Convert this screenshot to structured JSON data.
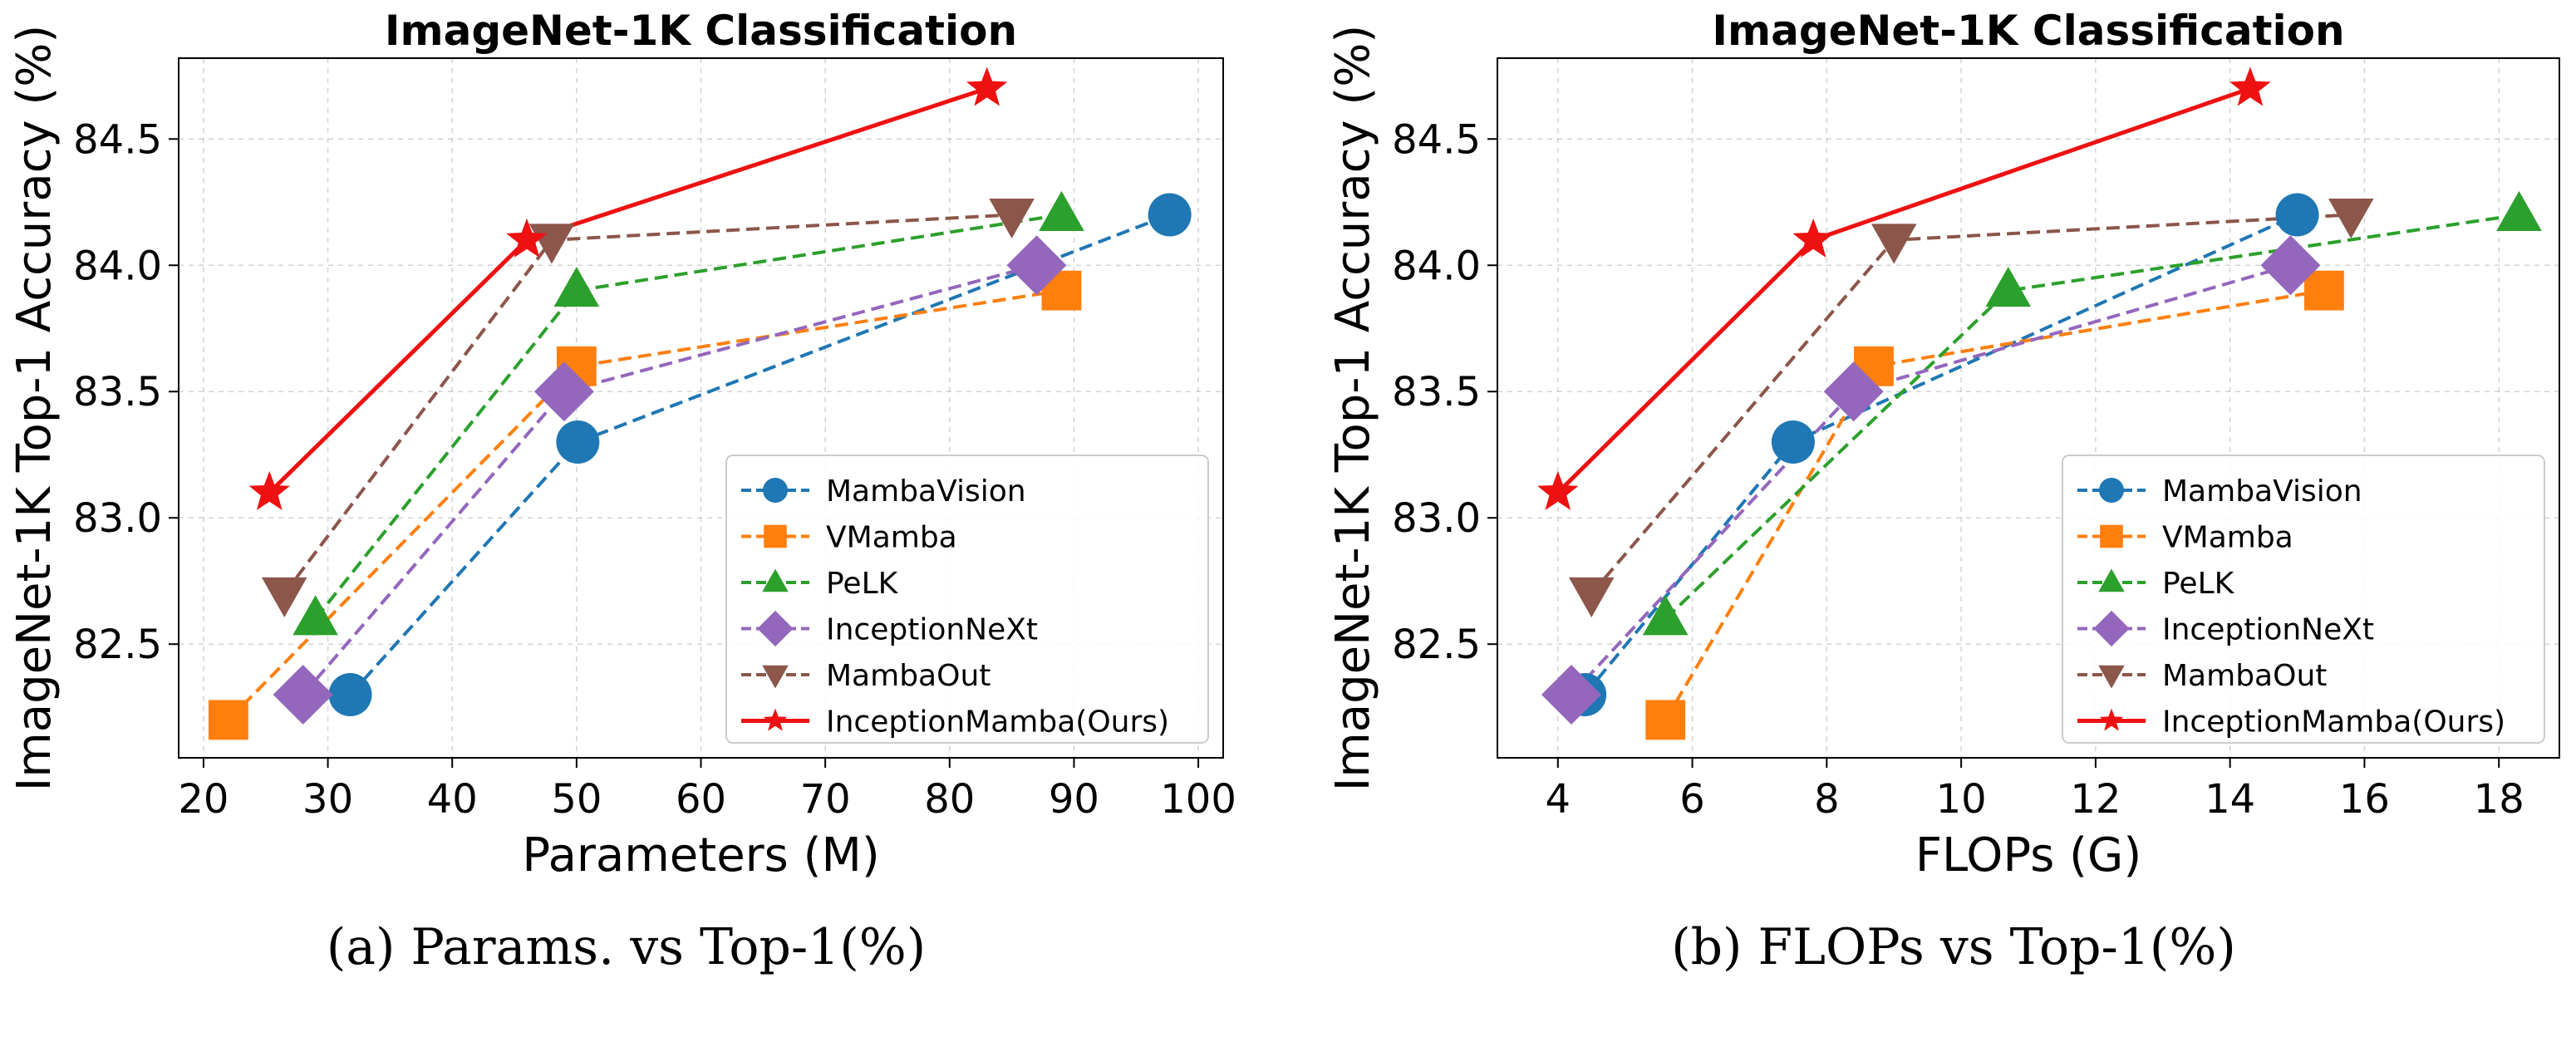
{
  "chart_data": [
    {
      "id": "params",
      "type": "line",
      "title": "ImageNet-1K Classification",
      "xlabel": "Parameters (M)",
      "ylabel": "ImageNet-1K Top-1 Accuracy (%)",
      "caption": "(a) Params. vs Top-1(%)",
      "xlim": [
        18,
        102
      ],
      "ylim": [
        82.05,
        84.82
      ],
      "xticks": [
        20,
        30,
        40,
        50,
        60,
        70,
        80,
        90,
        100
      ],
      "xtick_labels": [
        "20",
        "30",
        "40",
        "50",
        "60",
        "70",
        "80",
        "90",
        "100"
      ],
      "yticks": [
        82.5,
        83.0,
        83.5,
        84.0,
        84.5
      ],
      "ytick_labels": [
        "82.5",
        "83.0",
        "83.5",
        "84.0",
        "84.5"
      ],
      "grid": true,
      "legend_position": "bottom-right",
      "series": [
        {
          "name": "MambaVision",
          "color": "#1f77b4",
          "marker": "circle",
          "dashed": true,
          "points": [
            [
              31.8,
              82.3
            ],
            [
              50.1,
              83.3
            ],
            [
              97.7,
              84.2
            ]
          ]
        },
        {
          "name": "VMamba",
          "color": "#ff7f0e",
          "marker": "square",
          "dashed": true,
          "points": [
            [
              22,
              82.2
            ],
            [
              50,
              83.6
            ],
            [
              89,
              83.9
            ]
          ]
        },
        {
          "name": "PeLK",
          "color": "#2ca02c",
          "marker": "triangle-up",
          "dashed": true,
          "points": [
            [
              29,
              82.6
            ],
            [
              50,
              83.9
            ],
            [
              89,
              84.2
            ]
          ]
        },
        {
          "name": "InceptionNeXt",
          "color": "#9467bd",
          "marker": "diamond",
          "dashed": true,
          "points": [
            [
              28,
              82.3
            ],
            [
              49,
              83.5
            ],
            [
              87,
              84.0
            ]
          ]
        },
        {
          "name": "MambaOut",
          "color": "#8c564b",
          "marker": "triangle-down",
          "dashed": true,
          "points": [
            [
              26.5,
              82.7
            ],
            [
              48,
              84.1
            ],
            [
              85,
              84.2
            ]
          ]
        },
        {
          "name": "InceptionMamba(Ours)",
          "color": "#ee1111",
          "marker": "star",
          "dashed": false,
          "points": [
            [
              25.3,
              83.1
            ],
            [
              46,
              84.1
            ],
            [
              83,
              84.7
            ]
          ]
        }
      ]
    },
    {
      "id": "flops",
      "type": "line",
      "title": "ImageNet-1K Classification",
      "xlabel": "FLOPs (G)",
      "ylabel": "ImageNet-1K Top-1 Accuracy (%)",
      "caption": "(b) FLOPs vs Top-1(%)",
      "xlim": [
        3.1,
        18.9
      ],
      "ylim": [
        82.05,
        84.82
      ],
      "xticks": [
        4,
        6,
        8,
        10,
        12,
        14,
        16,
        18
      ],
      "xtick_labels": [
        "4",
        "6",
        "8",
        "10",
        "12",
        "14",
        "16",
        "18"
      ],
      "yticks": [
        82.5,
        83.0,
        83.5,
        84.0,
        84.5
      ],
      "ytick_labels": [
        "82.5",
        "83.0",
        "83.5",
        "84.0",
        "84.5"
      ],
      "grid": true,
      "legend_position": "bottom-right",
      "series": [
        {
          "name": "MambaVision",
          "color": "#1f77b4",
          "marker": "circle",
          "dashed": true,
          "points": [
            [
              4.4,
              82.3
            ],
            [
              7.5,
              83.3
            ],
            [
              15,
              84.2
            ]
          ]
        },
        {
          "name": "VMamba",
          "color": "#ff7f0e",
          "marker": "square",
          "dashed": true,
          "points": [
            [
              5.6,
              82.2
            ],
            [
              8.7,
              83.6
            ],
            [
              15.4,
              83.9
            ]
          ]
        },
        {
          "name": "PeLK",
          "color": "#2ca02c",
          "marker": "triangle-up",
          "dashed": true,
          "points": [
            [
              5.6,
              82.6
            ],
            [
              10.7,
              83.9
            ],
            [
              18.3,
              84.2
            ]
          ]
        },
        {
          "name": "InceptionNeXt",
          "color": "#9467bd",
          "marker": "diamond",
          "dashed": true,
          "points": [
            [
              4.2,
              82.3
            ],
            [
              8.4,
              83.5
            ],
            [
              14.9,
              84.0
            ]
          ]
        },
        {
          "name": "MambaOut",
          "color": "#8c564b",
          "marker": "triangle-down",
          "dashed": true,
          "points": [
            [
              4.5,
              82.7
            ],
            [
              9.0,
              84.1
            ],
            [
              15.8,
              84.2
            ]
          ]
        },
        {
          "name": "InceptionMamba(Ours)",
          "color": "#ee1111",
          "marker": "star",
          "dashed": false,
          "points": [
            [
              4.0,
              83.1
            ],
            [
              7.8,
              84.1
            ],
            [
              14.3,
              84.7
            ]
          ]
        }
      ]
    }
  ]
}
